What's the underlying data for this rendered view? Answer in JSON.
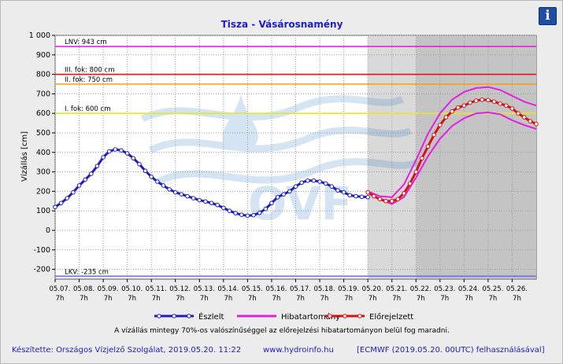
{
  "chart_data": {
    "type": "line",
    "title": "Tisza - Vásárosnamény",
    "ylabel": "Vízállás [cm]",
    "ylim": [
      -250,
      1000
    ],
    "yticks": [
      -200,
      -100,
      0,
      100,
      200,
      300,
      400,
      500,
      600,
      700,
      800,
      900,
      1000
    ],
    "ytick_labels": [
      "-200",
      "-100",
      "0",
      "100",
      "200",
      "300",
      "400",
      "500",
      "600",
      "700",
      "800",
      "900",
      "1 000"
    ],
    "xlim": [
      0,
      20
    ],
    "xticks": [
      {
        "x": 0,
        "date": "05.07.",
        "hour": "7h"
      },
      {
        "x": 1,
        "date": "05.08.",
        "hour": "7h"
      },
      {
        "x": 2,
        "date": "05.09.",
        "hour": "7h"
      },
      {
        "x": 3,
        "date": "05.10.",
        "hour": "7h"
      },
      {
        "x": 4,
        "date": "05.11.",
        "hour": "7h"
      },
      {
        "x": 5,
        "date": "05.12.",
        "hour": "7h"
      },
      {
        "x": 6,
        "date": "05.13.",
        "hour": "7h"
      },
      {
        "x": 7,
        "date": "05.14.",
        "hour": "7h"
      },
      {
        "x": 8,
        "date": "05.15.",
        "hour": "7h"
      },
      {
        "x": 9,
        "date": "05.16.",
        "hour": "7h"
      },
      {
        "x": 10,
        "date": "05.17.",
        "hour": "7h"
      },
      {
        "x": 11,
        "date": "05.18.",
        "hour": "7h"
      },
      {
        "x": 12,
        "date": "05.19.",
        "hour": "7h"
      },
      {
        "x": 13,
        "date": "05.20.",
        "hour": "7h"
      },
      {
        "x": 14,
        "date": "05.21.",
        "hour": "7h"
      },
      {
        "x": 15,
        "date": "05.22.",
        "hour": "7h"
      },
      {
        "x": 16,
        "date": "05.23.",
        "hour": "7h"
      },
      {
        "x": 17,
        "date": "05.24.",
        "hour": "7h"
      },
      {
        "x": 18,
        "date": "05.25.",
        "hour": "7h"
      },
      {
        "x": 19,
        "date": "05.26.",
        "hour": "7h"
      }
    ],
    "shaded_regions": [
      {
        "from": 13.0,
        "to": 15.0,
        "color": "#d9d9d9"
      },
      {
        "from": 15.0,
        "to": 20.0,
        "color": "#c4c4c4"
      }
    ],
    "thresholds": [
      {
        "label": "LNV: 943 cm",
        "value": 943,
        "color": "#d81ad8"
      },
      {
        "label": "III. fok: 800 cm",
        "value": 800,
        "color": "#e3131b"
      },
      {
        "label": "II. fok: 750 cm",
        "value": 750,
        "color": "#f2a20f"
      },
      {
        "label": "I. fok: 600 cm",
        "value": 600,
        "color": "#e8e620"
      },
      {
        "label": "LKV: -235 cm",
        "value": -235,
        "color": "#6f6cf0"
      }
    ],
    "series": [
      {
        "name": "Észlelt",
        "color": "#1e1ebe",
        "x": [
          0,
          0.25,
          0.5,
          0.75,
          1,
          1.25,
          1.5,
          1.75,
          2,
          2.25,
          2.5,
          2.75,
          3,
          3.25,
          3.5,
          3.75,
          4,
          4.25,
          4.5,
          4.75,
          5,
          5.25,
          5.5,
          5.75,
          6,
          6.25,
          6.5,
          6.75,
          7,
          7.25,
          7.5,
          7.75,
          8,
          8.25,
          8.5,
          8.75,
          9,
          9.25,
          9.5,
          9.75,
          10,
          10.25,
          10.5,
          10.75,
          11,
          11.25,
          11.5,
          11.75,
          12,
          12.25,
          12.5,
          12.75,
          13
        ],
        "values": [
          120,
          140,
          165,
          195,
          230,
          260,
          290,
          330,
          375,
          405,
          415,
          410,
          395,
          370,
          340,
          305,
          275,
          250,
          230,
          210,
          195,
          185,
          175,
          165,
          155,
          148,
          140,
          130,
          115,
          100,
          88,
          80,
          75,
          78,
          90,
          110,
          140,
          170,
          185,
          200,
          225,
          245,
          255,
          255,
          250,
          240,
          225,
          205,
          195,
          180,
          175,
          172,
          170
        ]
      },
      {
        "name": "Hibatartomány",
        "color": "#e31fe3",
        "x": [
          13,
          13.5,
          14,
          14.5,
          15,
          15.5,
          16,
          16.5,
          17,
          17.5,
          18,
          18.5,
          19,
          19.5,
          20
        ],
        "upper": [
          200,
          175,
          170,
          235,
          360,
          495,
          600,
          670,
          710,
          730,
          735,
          720,
          690,
          660,
          640
        ],
        "lower": [
          200,
          158,
          135,
          170,
          270,
          380,
          470,
          535,
          575,
          600,
          605,
          595,
          565,
          540,
          520
        ]
      },
      {
        "name": "Előrejelzett",
        "color": "#d41414",
        "x": [
          13,
          13.25,
          13.5,
          13.75,
          14,
          14.25,
          14.5,
          14.75,
          15,
          15.25,
          15.5,
          15.75,
          16,
          16.25,
          16.5,
          16.75,
          17,
          17.25,
          17.5,
          17.75,
          18,
          18.25,
          18.5,
          18.75,
          19,
          19.25,
          19.5,
          19.75,
          20
        ],
        "values": [
          195,
          175,
          160,
          150,
          150,
          160,
          190,
          240,
          300,
          370,
          430,
          490,
          540,
          580,
          610,
          630,
          640,
          655,
          665,
          670,
          668,
          660,
          650,
          640,
          625,
          600,
          580,
          560,
          545
        ]
      }
    ],
    "note": "A vízállás mintegy 70%-os valószínűséggel az előrejelzési hibatartományon belül fog maradni."
  },
  "footer": {
    "author": "Készítette: Országos Vízjelző Szolgálat, 2019.05.20. 11:22",
    "site": "www.hydroinfo.hu",
    "model": "[ECMWF (2019.05.20. 00UTC) felhasználásával]"
  },
  "info_button": "i",
  "watermark": "OVF",
  "icons": {
    "info": "info-icon",
    "watermark": "ovf-logo"
  }
}
